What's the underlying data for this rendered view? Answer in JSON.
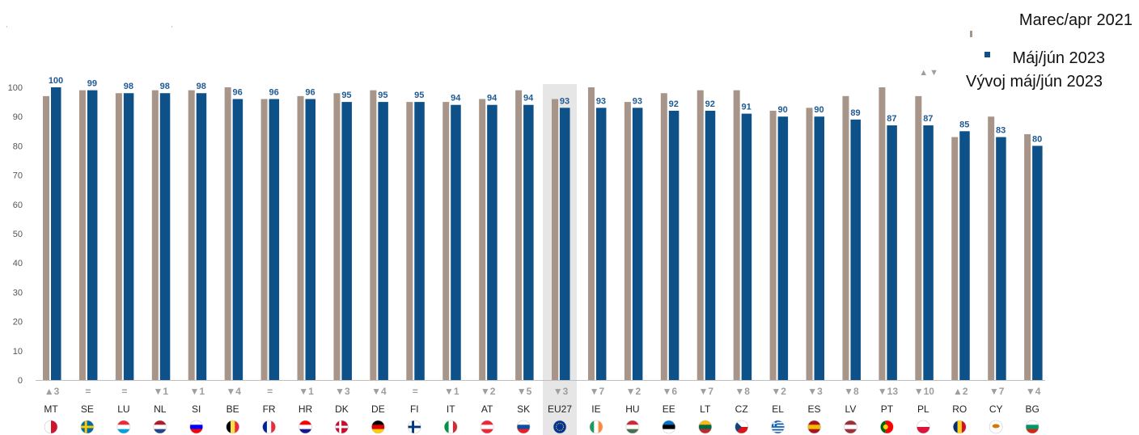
{
  "legend": {
    "series1": "Marec/apr 2021",
    "series2": "Máj/jún 2023",
    "change": "Vývoj máj/jún 2023"
  },
  "colors": {
    "series1": "#a89589",
    "series2": "#0e5189",
    "label": "#1f5a94",
    "axis": "#555555",
    "highlight": "#e6e6e6",
    "change_marker": "#9e9e9e"
  },
  "chart_data": {
    "type": "bar",
    "ylim": [
      0,
      100
    ],
    "yticks": [
      0,
      10,
      20,
      30,
      40,
      50,
      60,
      70,
      80,
      90,
      100
    ],
    "grid": false,
    "legend_position": "top-right",
    "highlight_category": "EU27",
    "categories": [
      "MT",
      "SE",
      "LU",
      "NL",
      "SI",
      "BE",
      "FR",
      "HR",
      "DK",
      "DE",
      "FI",
      "IT",
      "AT",
      "SK",
      "EU27",
      "IE",
      "HU",
      "EE",
      "LT",
      "CZ",
      "EL",
      "ES",
      "LV",
      "PT",
      "PL",
      "RO",
      "CY",
      "BG"
    ],
    "series": [
      {
        "name": "Marec/apr 2021",
        "values": [
          97,
          99,
          98,
          99,
          99,
          100,
          96,
          97,
          98,
          99,
          95,
          95,
          96,
          99,
          96,
          100,
          95,
          98,
          99,
          99,
          92,
          93,
          97,
          100,
          97,
          83,
          90,
          84
        ]
      },
      {
        "name": "Máj/jún 2023",
        "values": [
          100,
          99,
          98,
          98,
          98,
          96,
          96,
          96,
          95,
          95,
          95,
          94,
          94,
          94,
          93,
          93,
          93,
          92,
          92,
          91,
          90,
          90,
          89,
          87,
          87,
          85,
          83,
          80
        ]
      }
    ],
    "changes": [
      "▲3",
      "=",
      "=",
      "▼1",
      "▼1",
      "▼4",
      "=",
      "▼1",
      "▼3",
      "▼4",
      "=",
      "▼1",
      "▼2",
      "▼5",
      "▼3",
      "▼7",
      "▼2",
      "▼6",
      "▼7",
      "▼8",
      "▼2",
      "▼3",
      "▼8",
      "▼13",
      "▼10",
      "▲2",
      "▼7",
      "▼4"
    ],
    "flags": [
      {
        "icon": "mt-flag-icon",
        "colors": [
          "#ffffff",
          "#cf142b"
        ],
        "dir": "v"
      },
      {
        "icon": "se-flag-icon",
        "colors": [
          "#006aa7",
          "#fecc00"
        ],
        "dir": "cross"
      },
      {
        "icon": "lu-flag-icon",
        "colors": [
          "#ed2939",
          "#ffffff",
          "#00a1de"
        ],
        "dir": "h"
      },
      {
        "icon": "nl-flag-icon",
        "colors": [
          "#ae1c28",
          "#ffffff",
          "#21468b"
        ],
        "dir": "h"
      },
      {
        "icon": "si-flag-icon",
        "colors": [
          "#ffffff",
          "#0000ff",
          "#ff0000"
        ],
        "dir": "h"
      },
      {
        "icon": "be-flag-icon",
        "colors": [
          "#000000",
          "#fae042",
          "#ed2939"
        ],
        "dir": "v"
      },
      {
        "icon": "fr-flag-icon",
        "colors": [
          "#002395",
          "#ffffff",
          "#ed2939"
        ],
        "dir": "v"
      },
      {
        "icon": "hr-flag-icon",
        "colors": [
          "#ff0000",
          "#ffffff",
          "#171796"
        ],
        "dir": "h"
      },
      {
        "icon": "dk-flag-icon",
        "colors": [
          "#c60c30",
          "#ffffff"
        ],
        "dir": "cross"
      },
      {
        "icon": "de-flag-icon",
        "colors": [
          "#000000",
          "#dd0000",
          "#ffce00"
        ],
        "dir": "h"
      },
      {
        "icon": "fi-flag-icon",
        "colors": [
          "#ffffff",
          "#003580"
        ],
        "dir": "cross"
      },
      {
        "icon": "it-flag-icon",
        "colors": [
          "#009246",
          "#ffffff",
          "#ce2b37"
        ],
        "dir": "v"
      },
      {
        "icon": "at-flag-icon",
        "colors": [
          "#ed2939",
          "#ffffff",
          "#ed2939"
        ],
        "dir": "h"
      },
      {
        "icon": "sk-flag-icon",
        "colors": [
          "#ffffff",
          "#0b4ea2",
          "#ee1c25"
        ],
        "dir": "h"
      },
      {
        "icon": "eu-flag-icon",
        "colors": [
          "#003399",
          "#ffcc00"
        ],
        "dir": "eu"
      },
      {
        "icon": "ie-flag-icon",
        "colors": [
          "#169b62",
          "#ffffff",
          "#ff883e"
        ],
        "dir": "v"
      },
      {
        "icon": "hu-flag-icon",
        "colors": [
          "#ce2939",
          "#ffffff",
          "#477050"
        ],
        "dir": "h"
      },
      {
        "icon": "ee-flag-icon",
        "colors": [
          "#0072ce",
          "#000000",
          "#ffffff"
        ],
        "dir": "h"
      },
      {
        "icon": "lt-flag-icon",
        "colors": [
          "#fdb913",
          "#006a44",
          "#c1272d"
        ],
        "dir": "h"
      },
      {
        "icon": "cz-flag-icon",
        "colors": [
          "#ffffff",
          "#d7141a",
          "#11457e"
        ],
        "dir": "cz"
      },
      {
        "icon": "el-flag-icon",
        "colors": [
          "#0d5eaf",
          "#ffffff"
        ],
        "dir": "stripes"
      },
      {
        "icon": "es-flag-icon",
        "colors": [
          "#aa151b",
          "#f1bf00",
          "#aa151b"
        ],
        "dir": "h"
      },
      {
        "icon": "lv-flag-icon",
        "colors": [
          "#9e3039",
          "#ffffff",
          "#9e3039"
        ],
        "dir": "h"
      },
      {
        "icon": "pt-flag-icon",
        "colors": [
          "#006600",
          "#ff0000"
        ],
        "dir": "pt"
      },
      {
        "icon": "pl-flag-icon",
        "colors": [
          "#ffffff",
          "#dc143c"
        ],
        "dir": "h"
      },
      {
        "icon": "ro-flag-icon",
        "colors": [
          "#002b7f",
          "#fcd116",
          "#ce1126"
        ],
        "dir": "v"
      },
      {
        "icon": "cy-flag-icon",
        "colors": [
          "#ffffff",
          "#d57800"
        ],
        "dir": "cy"
      },
      {
        "icon": "bg-flag-icon",
        "colors": [
          "#ffffff",
          "#00966e",
          "#d62612"
        ],
        "dir": "h"
      }
    ]
  }
}
